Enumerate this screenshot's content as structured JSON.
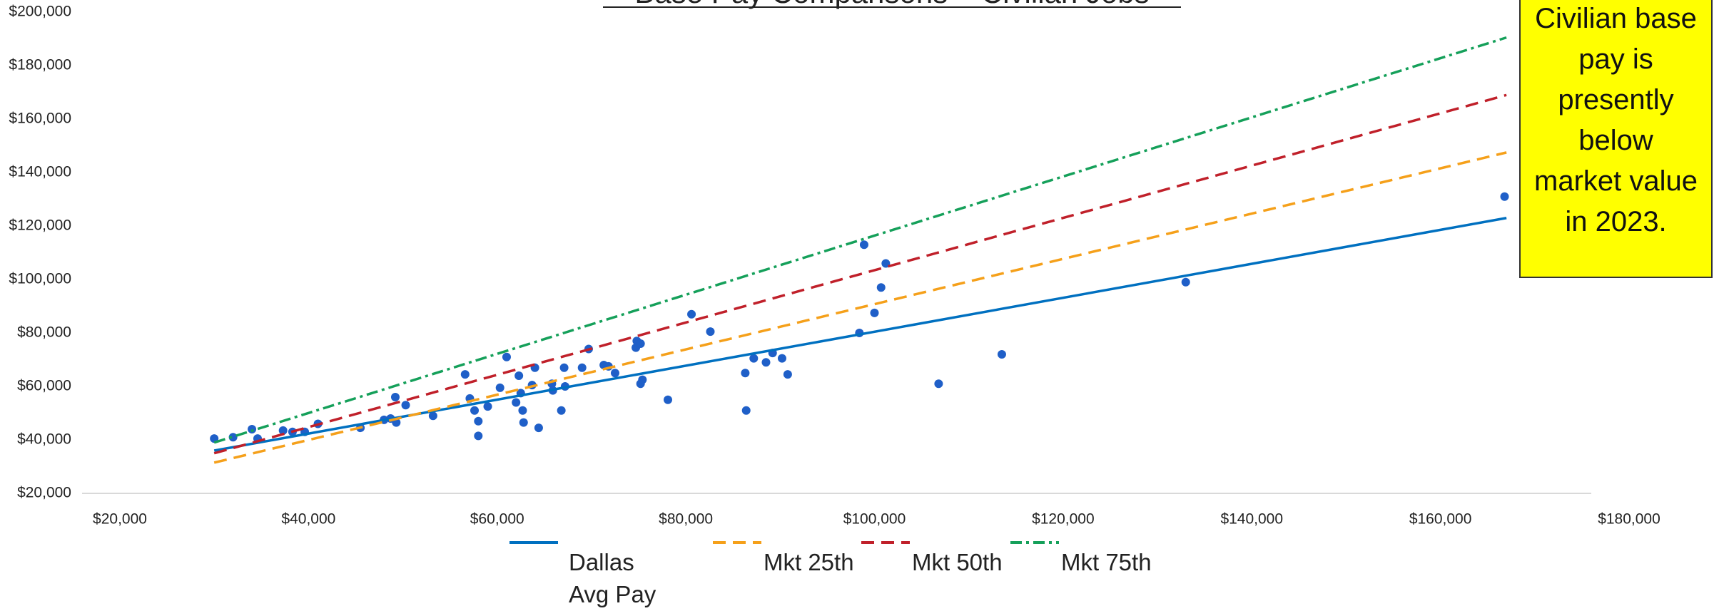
{
  "chart_data": {
    "type": "scatter",
    "title": "Base Pay Comparisons – Civilian Jobs",
    "annotation": "Civilian base pay is presently below market value in 2023.",
    "xlim": [
      20000,
      180000
    ],
    "ylim": [
      20000,
      200000
    ],
    "xticks": [
      {
        "value": 20000,
        "label": "$20,000"
      },
      {
        "value": 40000,
        "label": "$40,000"
      },
      {
        "value": 60000,
        "label": "$60,000"
      },
      {
        "value": 80000,
        "label": "$80,000"
      },
      {
        "value": 100000,
        "label": "$100,000"
      },
      {
        "value": 120000,
        "label": "$120,000"
      },
      {
        "value": 140000,
        "label": "$140,000"
      },
      {
        "value": 160000,
        "label": "$160,000"
      },
      {
        "value": 180000,
        "label": "$180,000"
      }
    ],
    "yticks": [
      {
        "value": 20000,
        "label": "$20,000"
      },
      {
        "value": 40000,
        "label": "$40,000"
      },
      {
        "value": 60000,
        "label": "$60,000"
      },
      {
        "value": 80000,
        "label": "$80,000"
      },
      {
        "value": 100000,
        "label": "$100,000"
      },
      {
        "value": 120000,
        "label": "$120,000"
      },
      {
        "value": 140000,
        "label": "$140,000"
      },
      {
        "value": 160000,
        "label": "$160,000"
      },
      {
        "value": 180000,
        "label": "$180,000"
      },
      {
        "value": 200000,
        "label": "$200,000"
      }
    ],
    "points": {
      "color": "#1f5fc8",
      "x": [
        30000,
        32000,
        34000,
        34600,
        37300,
        38300,
        39600,
        41000,
        45500,
        48000,
        48700,
        49200,
        49300,
        50300,
        53200,
        56600,
        57100,
        57600,
        58000,
        58000,
        59000,
        60300,
        61000,
        62000,
        62300,
        62500,
        62700,
        62800,
        63700,
        64000,
        64400,
        65800,
        65900,
        66800,
        67100,
        67200,
        69000,
        69700,
        71300,
        71800,
        72500,
        74700,
        74800,
        75200,
        75200,
        75400,
        78100,
        80600,
        82600,
        86300,
        86400,
        87200,
        88500,
        89200,
        90200,
        90800,
        98400,
        98900,
        100000,
        100700,
        101200,
        106800,
        113500,
        133000,
        166800
      ],
      "values": [
        40500,
        41000,
        44000,
        40500,
        43500,
        43000,
        43000,
        46000,
        44500,
        47500,
        48000,
        56000,
        46500,
        53000,
        49000,
        64500,
        55500,
        51000,
        47000,
        41500,
        52500,
        59500,
        71000,
        54000,
        64000,
        57500,
        51000,
        46500,
        60500,
        67000,
        44500,
        61000,
        58500,
        51000,
        67000,
        60000,
        67000,
        74000,
        68000,
        67500,
        65000,
        74500,
        77000,
        76000,
        61000,
        62500,
        55000,
        87000,
        80500,
        65000,
        51000,
        70500,
        69000,
        72500,
        70500,
        64500,
        80000,
        113000,
        87500,
        97000,
        106000,
        61000,
        72000,
        99000,
        131000
      ]
    },
    "series": [
      {
        "name": "Dallas Avg Pay",
        "color": "#0070c0",
        "style": "solid",
        "x": [
          30000,
          167000
        ],
        "values": [
          36000,
          123000
        ]
      },
      {
        "name": "Mkt 25th",
        "color": "#f5a01a",
        "style": "dashed",
        "x": [
          30000,
          167000
        ],
        "values": [
          31500,
          147500
        ]
      },
      {
        "name": "Mkt 50th",
        "color": "#c0202a",
        "style": "dashed",
        "x": [
          30000,
          167000
        ],
        "values": [
          35000,
          169000
        ]
      },
      {
        "name": "Mkt 75th",
        "color": "#15a05a",
        "style": "dashdot",
        "x": [
          30000,
          167000
        ],
        "values": [
          39000,
          190500
        ]
      }
    ]
  }
}
